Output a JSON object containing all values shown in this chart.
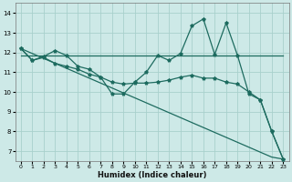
{
  "xlabel": "Humidex (Indice chaleur)",
  "xlim": [
    -0.5,
    23.5
  ],
  "ylim": [
    6.5,
    14.5
  ],
  "xticks": [
    0,
    1,
    2,
    3,
    4,
    5,
    6,
    7,
    8,
    9,
    10,
    11,
    12,
    13,
    14,
    15,
    16,
    17,
    18,
    19,
    20,
    21,
    22,
    23
  ],
  "yticks": [
    7,
    8,
    9,
    10,
    11,
    12,
    13,
    14
  ],
  "bg_color": "#cde9e7",
  "grid_color": "#a8d0cc",
  "line_color": "#1d6b5f",
  "series_zigzag": [
    12.2,
    11.6,
    11.8,
    12.1,
    11.85,
    11.3,
    11.15,
    10.75,
    9.9,
    9.9,
    10.5,
    11.0,
    11.85,
    11.6,
    11.95,
    13.35,
    13.7,
    11.9,
    13.5,
    11.85,
    9.9,
    9.6,
    8.0,
    6.6
  ],
  "series_flat": [
    11.85,
    11.85,
    11.85,
    11.85,
    11.85,
    11.85,
    11.85,
    11.85,
    11.85,
    11.85,
    11.85,
    11.85,
    11.85,
    11.85,
    11.85,
    11.85,
    11.85,
    11.85,
    11.85,
    11.85,
    11.85,
    11.85,
    11.85,
    11.85
  ],
  "series_gentle": [
    12.2,
    11.6,
    11.75,
    11.45,
    11.3,
    11.15,
    10.9,
    10.75,
    10.5,
    10.4,
    10.45,
    10.45,
    10.5,
    10.6,
    10.75,
    10.85,
    10.7,
    10.7,
    10.5,
    10.4,
    10.0,
    9.6,
    8.0,
    6.6
  ],
  "series_diagonal": [
    12.2,
    11.95,
    11.7,
    11.45,
    11.2,
    10.95,
    10.7,
    10.45,
    10.2,
    9.95,
    9.7,
    9.45,
    9.2,
    8.95,
    8.7,
    8.45,
    8.2,
    7.95,
    7.7,
    7.45,
    7.2,
    6.95,
    6.7,
    6.6
  ]
}
